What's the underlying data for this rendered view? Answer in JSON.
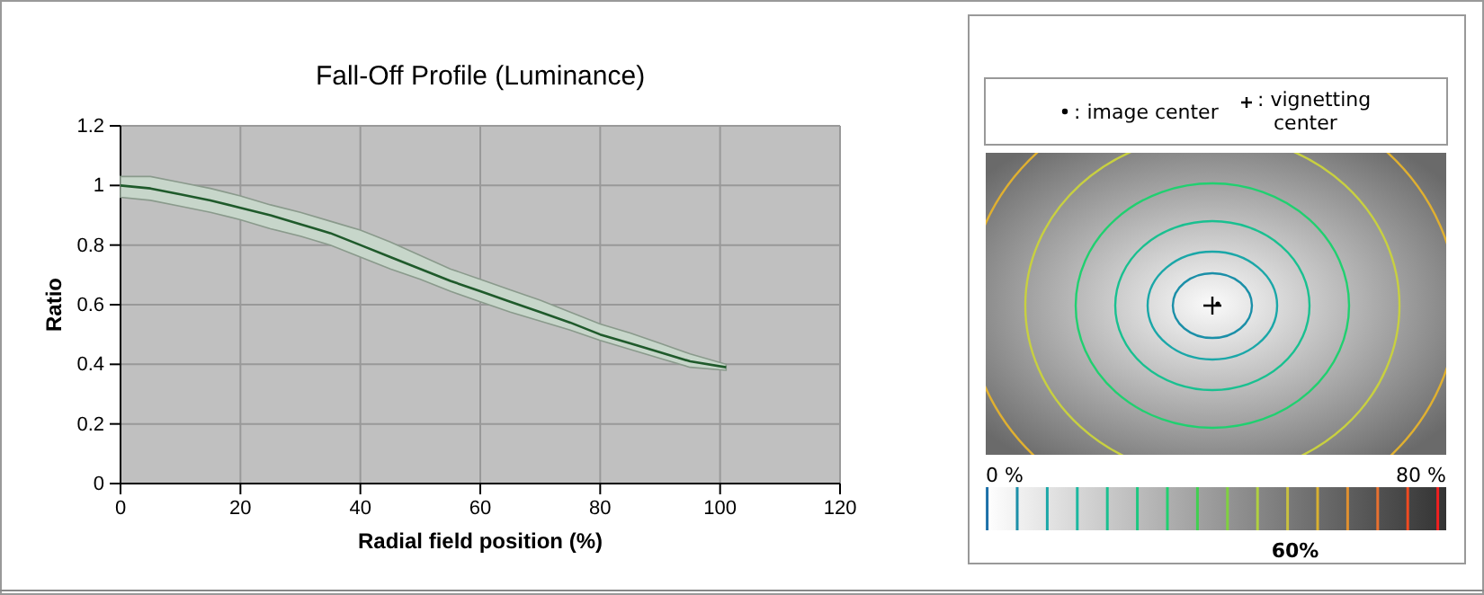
{
  "chart_data": [
    {
      "type": "line",
      "title": "Fall-Off Profile (Luminance)",
      "xlabel": "Radial field position (%)",
      "ylabel": "Ratio",
      "xlim": [
        0,
        120
      ],
      "xticks": [
        0,
        20,
        40,
        60,
        80,
        100,
        120
      ],
      "ylim": [
        0,
        1.2
      ],
      "yticks": [
        0,
        0.2,
        0.4,
        0.6,
        0.8,
        1,
        1.2
      ],
      "grid": true,
      "series": [
        {
          "color": "#1f5a2b",
          "x": [
            0,
            5,
            10,
            15,
            20,
            25,
            30,
            35,
            40,
            45,
            50,
            55,
            60,
            65,
            70,
            75,
            80,
            85,
            90,
            95,
            101
          ],
          "values": [
            1.0,
            0.99,
            0.97,
            0.95,
            0.925,
            0.9,
            0.87,
            0.84,
            0.8,
            0.76,
            0.72,
            0.68,
            0.645,
            0.61,
            0.575,
            0.54,
            0.5,
            0.47,
            0.44,
            0.41,
            0.39
          ],
          "lower": [
            0.96,
            0.95,
            0.93,
            0.91,
            0.885,
            0.855,
            0.83,
            0.8,
            0.76,
            0.72,
            0.685,
            0.645,
            0.61,
            0.575,
            0.545,
            0.515,
            0.48,
            0.45,
            0.42,
            0.39,
            0.38
          ],
          "upper": [
            1.03,
            1.03,
            1.01,
            0.99,
            0.965,
            0.935,
            0.91,
            0.88,
            0.85,
            0.81,
            0.765,
            0.72,
            0.685,
            0.65,
            0.615,
            0.575,
            0.535,
            0.505,
            0.47,
            0.435,
            0.4
          ]
        }
      ]
    },
    {
      "type": "other",
      "annotations": [
        ": image center",
        ": vignetting center",
        "0 %",
        "80 %",
        "60%"
      ]
    }
  ]
}
